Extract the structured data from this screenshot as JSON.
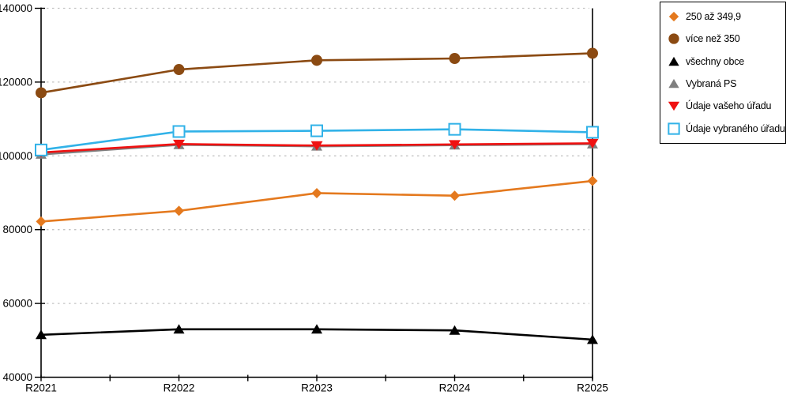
{
  "chart_data": {
    "type": "line",
    "title": "",
    "xlabel": "",
    "ylabel": "",
    "categories": [
      "R2021",
      "R2022",
      "R2023",
      "R2024",
      "R2025"
    ],
    "series": [
      {
        "name": "250 až 349,9",
        "marker": "diamond",
        "color": "#E4791E",
        "values": [
          82200,
          85100,
          89900,
          89200,
          93200
        ]
      },
      {
        "name": "více než 350",
        "marker": "circle",
        "color": "#8B4A12",
        "values": [
          117100,
          123400,
          125900,
          126400,
          127800
        ]
      },
      {
        "name": "všechny obce",
        "marker": "triangle-up",
        "color": "#000000",
        "values": [
          51500,
          53000,
          53000,
          52700,
          50200
        ]
      },
      {
        "name": "Vybraná PS",
        "marker": "triangle-up",
        "color": "#7F7F7F",
        "values": [
          100400,
          103000,
          102600,
          102900,
          103200
        ]
      },
      {
        "name": "Údaje vašeho úřadu",
        "marker": "triangle-down",
        "color": "#EF1111",
        "values": [
          100900,
          103200,
          102800,
          103100,
          103400
        ]
      },
      {
        "name": "Údaje vybraného úřadu",
        "marker": "square-open",
        "color": "#31B2E8",
        "values": [
          101600,
          106600,
          106800,
          107200,
          106400
        ]
      }
    ],
    "ylim": [
      40000,
      140000
    ],
    "ytick_step": 20000,
    "ytick_labels": [
      "40000",
      "60000",
      "80000",
      "100000",
      "120000",
      "140000"
    ],
    "x_minor_ticks_at_midpoints": true,
    "grid": "horizontal-dashed",
    "grid_color": "#C3C3C3",
    "axis_color": "#000000",
    "legend_position": "top-right",
    "legend_border_color": "#000000",
    "background_color": "#FFFFFF"
  }
}
